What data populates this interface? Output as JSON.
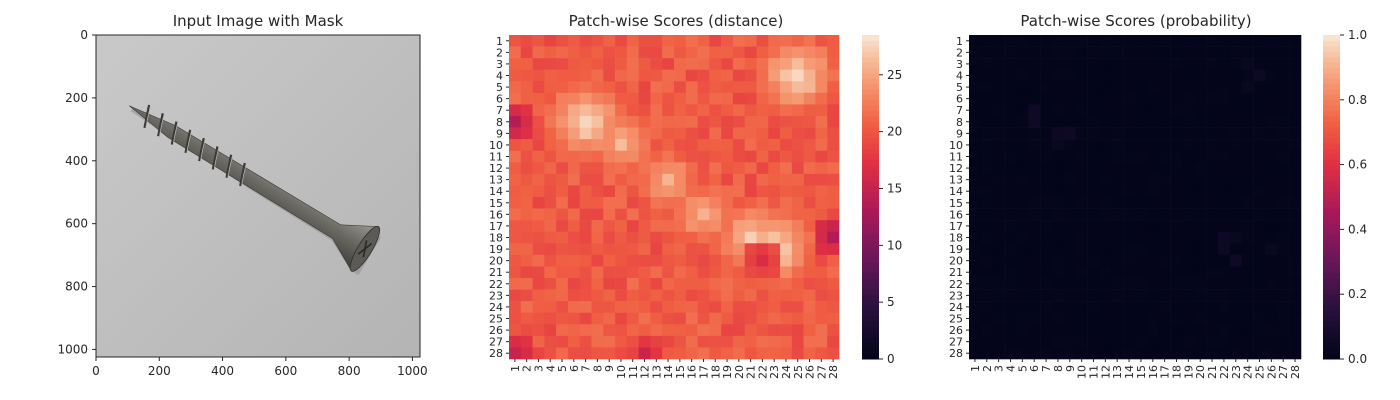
{
  "figure": {
    "panel_titles": [
      "Input Image with Mask",
      "Patch-wise Scores (distance)",
      "Patch-wise Scores (probability)"
    ]
  },
  "chart_data": [
    {
      "type": "image",
      "title": "Input Image with Mask",
      "xlabel": "",
      "ylabel": "",
      "xlim": [
        0,
        1024
      ],
      "ylim": [
        1024,
        0
      ],
      "x_ticks": [
        0,
        200,
        400,
        600,
        800,
        1000
      ],
      "y_ticks": [
        0,
        200,
        400,
        600,
        800,
        1000
      ],
      "content": "screw",
      "background": "#bfbfbf",
      "screw_head": [
        850,
        680
      ],
      "screw_tip": [
        105,
        225
      ]
    },
    {
      "type": "heatmap",
      "title": "Patch-wise Scores (distance)",
      "x_categories": [
        "1",
        "2",
        "3",
        "4",
        "5",
        "6",
        "7",
        "8",
        "9",
        "10",
        "11",
        "12",
        "13",
        "14",
        "15",
        "16",
        "17",
        "18",
        "19",
        "20",
        "21",
        "22",
        "23",
        "24",
        "25",
        "26",
        "27",
        "28"
      ],
      "y_categories": [
        "1",
        "2",
        "3",
        "4",
        "5",
        "6",
        "7",
        "8",
        "9",
        "10",
        "11",
        "12",
        "13",
        "14",
        "15",
        "16",
        "17",
        "18",
        "19",
        "20",
        "21",
        "22",
        "23",
        "24",
        "25",
        "26",
        "27",
        "28"
      ],
      "colorbar": {
        "min": 0,
        "max": 28.5,
        "ticks": [
          0,
          5,
          10,
          15,
          20,
          25
        ]
      },
      "base_value": 20,
      "high_regions": [
        {
          "center": [
            7,
            8
          ],
          "peak": 28
        },
        {
          "center": [
            10,
            10
          ],
          "peak": 26
        },
        {
          "center": [
            14,
            13
          ],
          "peak": 26
        },
        {
          "center": [
            17,
            16
          ],
          "peak": 26
        },
        {
          "center": [
            21,
            18
          ],
          "peak": 27
        },
        {
          "center": [
            23,
            19
          ],
          "peak": 28
        },
        {
          "center": [
            25,
            4
          ],
          "peak": 28
        }
      ],
      "low_regions": [
        {
          "center": [
            1,
            8
          ],
          "peak": 13
        },
        {
          "center": [
            28,
            18
          ],
          "peak": 13
        },
        {
          "center": [
            1,
            28
          ],
          "peak": 14
        },
        {
          "center": [
            12,
            28
          ],
          "peak": 15
        },
        {
          "center": [
            22,
            20
          ],
          "peak": 15
        }
      ]
    },
    {
      "type": "heatmap",
      "title": "Patch-wise Scores (probability)",
      "x_categories": [
        "1",
        "2",
        "3",
        "4",
        "5",
        "6",
        "7",
        "8",
        "9",
        "10",
        "11",
        "12",
        "13",
        "14",
        "15",
        "16",
        "17",
        "18",
        "19",
        "20",
        "21",
        "22",
        "23",
        "24",
        "25",
        "26",
        "27",
        "28"
      ],
      "y_categories": [
        "1",
        "2",
        "3",
        "4",
        "5",
        "6",
        "7",
        "8",
        "9",
        "10",
        "11",
        "12",
        "13",
        "14",
        "15",
        "16",
        "17",
        "18",
        "19",
        "20",
        "21",
        "22",
        "23",
        "24",
        "25",
        "26",
        "27",
        "28"
      ],
      "colorbar": {
        "min": 0,
        "max": 1,
        "ticks": [
          "0.0",
          "0.2",
          "0.4",
          "0.6",
          "0.8",
          "1.0"
        ]
      },
      "base_value": 0.0,
      "hot_cells": [
        {
          "x": 6,
          "y": 7,
          "value": 0.05
        },
        {
          "x": 6,
          "y": 8,
          "value": 0.05
        },
        {
          "x": 8,
          "y": 9,
          "value": 0.04
        },
        {
          "x": 9,
          "y": 9,
          "value": 0.05
        },
        {
          "x": 8,
          "y": 10,
          "value": 0.03
        },
        {
          "x": 24,
          "y": 3,
          "value": 0.03
        },
        {
          "x": 25,
          "y": 4,
          "value": 0.04
        },
        {
          "x": 24,
          "y": 5,
          "value": 0.03
        },
        {
          "x": 22,
          "y": 18,
          "value": 0.04
        },
        {
          "x": 23,
          "y": 18,
          "value": 0.03
        },
        {
          "x": 22,
          "y": 19,
          "value": 0.04
        },
        {
          "x": 23,
          "y": 20,
          "value": 0.05
        },
        {
          "x": 26,
          "y": 19,
          "value": 0.03
        }
      ]
    }
  ]
}
